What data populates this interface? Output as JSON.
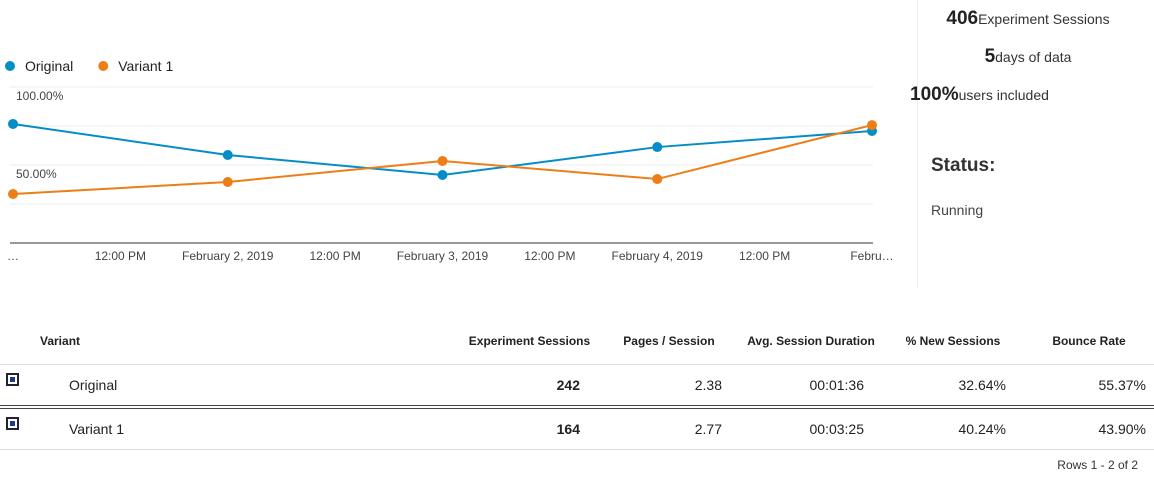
{
  "chart_data": {
    "type": "line",
    "categories": [
      "…",
      "February 2, 2019",
      "February 3, 2019",
      "February 4, 2019",
      "Febru…"
    ],
    "between_labels": [
      "12:00 PM",
      "12:00 PM",
      "12:00 PM",
      "12:00 PM"
    ],
    "series": [
      {
        "name": "Original",
        "color": "#058dc7",
        "values": [
          76.3,
          56.4,
          43.6,
          61.5,
          71.8
        ]
      },
      {
        "name": "Variant 1",
        "color": "#ed7e17",
        "values": [
          31.4,
          39.1,
          52.6,
          41.0,
          75.6
        ]
      }
    ],
    "ylim": [
      0,
      100
    ],
    "yticks": [
      {
        "value": 50,
        "label": "50.00%"
      },
      {
        "value": 100,
        "label": "100.00%"
      }
    ],
    "minor_yticks": [
      25,
      75
    ],
    "grid": true,
    "legend": "top-left"
  },
  "stats": [
    {
      "number": "406",
      "label": "Experiment Sessions"
    },
    {
      "number": "5",
      "label": "days of data"
    },
    {
      "number": "100%",
      "label": "users included"
    }
  ],
  "status": {
    "title": "Status:",
    "value": "Running"
  },
  "table": {
    "headers": [
      "Variant",
      "Experiment Sessions",
      "Pages / Session",
      "Avg. Session Duration",
      "% New Sessions",
      "Bounce Rate"
    ],
    "rows": [
      [
        "Original",
        "242",
        "2.38",
        "00:01:36",
        "32.64%",
        "55.37%"
      ],
      [
        "Variant 1",
        "164",
        "2.77",
        "00:03:25",
        "40.24%",
        "43.90%"
      ]
    ],
    "footer": "Rows 1 - 2 of 2"
  }
}
